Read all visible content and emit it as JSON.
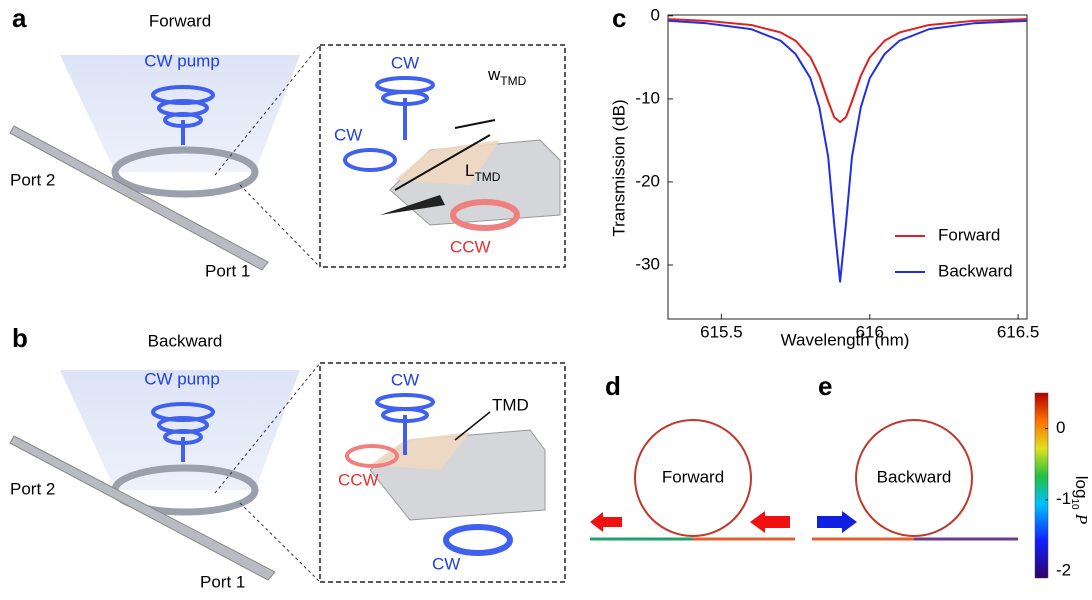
{
  "panel_a": {
    "letter": "a",
    "title": "Forward",
    "pump": "CW pump",
    "port2": "Port 2",
    "port1": "Port 1",
    "inset": {
      "cw_top": "CW",
      "width": {
        "text": "w",
        "sub": "TMD"
      },
      "cw_left": "CW",
      "length": {
        "text": "L",
        "sub": "TMD"
      },
      "ccw": "CCW"
    }
  },
  "panel_b": {
    "letter": "b",
    "title": "Backward",
    "pump": "CW pump",
    "port2": "Port 2",
    "port1": "Port 1",
    "inset": {
      "cw_top": "CW",
      "tmd": "TMD",
      "ccw": "CCW",
      "cw_bottom": "CW"
    }
  },
  "chart_data": {
    "type": "line",
    "panel": "c",
    "xlabel": "Wavelength (nm)",
    "ylabel": "Transmission (dB)",
    "x": [
      615.32,
      615.45,
      615.6,
      615.7,
      615.75,
      615.8,
      615.83,
      615.86,
      615.88,
      615.9,
      615.92,
      615.94,
      615.97,
      616.0,
      616.05,
      616.1,
      616.2,
      616.35,
      616.53
    ],
    "series": [
      {
        "name": "Forward",
        "color": "#e02020",
        "values": [
          -0.4,
          -0.6,
          -1.1,
          -2.0,
          -3.0,
          -5.0,
          -7.2,
          -10.3,
          -12.2,
          -12.8,
          -12.2,
          -10.3,
          -7.2,
          -5.0,
          -3.0,
          -2.0,
          -1.1,
          -0.6,
          -0.4
        ]
      },
      {
        "name": "Backward",
        "color": "#2030e0",
        "values": [
          -0.6,
          -0.9,
          -1.6,
          -3.0,
          -4.6,
          -7.5,
          -11,
          -17,
          -25,
          -32,
          -25,
          -17,
          -11,
          -7.5,
          -4.6,
          -3.0,
          -1.6,
          -0.9,
          -0.6
        ]
      }
    ],
    "xlim": [
      615.32,
      616.53
    ],
    "ylim": [
      -36.5,
      0.1
    ],
    "xticks": [
      615.5,
      616,
      616.5
    ],
    "yticks": [
      0,
      -10,
      -20,
      -30
    ],
    "legend": "lower-right"
  },
  "panel_d": {
    "letter": "d",
    "ring": "Forward"
  },
  "panel_e": {
    "letter": "e",
    "ring": "Backward"
  },
  "colorbar": {
    "label": {
      "text": "log",
      "sub": "10",
      "var": "P"
    },
    "ticks": [
      0,
      -1,
      -2
    ],
    "lim": [
      -2.1,
      0.5
    ]
  }
}
